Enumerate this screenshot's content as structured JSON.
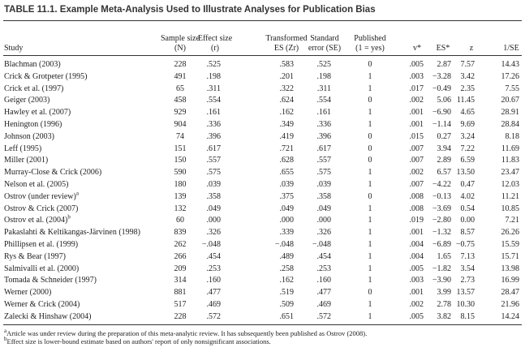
{
  "title": "TABLE 11.1. Example Meta-Analysis Used to Illustrate Analyses for Publication Bias",
  "header": [
    [
      "Study"
    ],
    [
      "Sample size",
      "(N)"
    ],
    [
      "Effect size",
      "(r)"
    ],
    [
      "Transformed",
      "ES (Zr)"
    ],
    [
      "Standard",
      "error (SE)"
    ],
    [
      "Published",
      "(1 = yes)"
    ],
    [
      "v*"
    ],
    [
      "ES*"
    ],
    [
      "z"
    ],
    [
      "1/SE"
    ]
  ],
  "table": {
    "rows": [
      [
        {
          "text": "Blachman (2003)"
        },
        "228",
        ".525",
        ".583",
        ".525",
        "0",
        ".005",
        "2.87",
        "7.57",
        "14.43"
      ],
      [
        {
          "text": "Crick & Grotpeter (1995)"
        },
        "491",
        ".198",
        ".201",
        ".198",
        "1",
        ".003",
        "−3.28",
        "3.42",
        "17.26"
      ],
      [
        {
          "text": "Crick et al. (1997)"
        },
        "65",
        ".311",
        ".322",
        ".311",
        "1",
        ".017",
        "−0.49",
        "2.35",
        "7.55"
      ],
      [
        {
          "text": "Geiger (2003)"
        },
        "458",
        ".554",
        ".624",
        ".554",
        "0",
        ".002",
        "5.06",
        "11.45",
        "20.67"
      ],
      [
        {
          "text": "Hawley et al. (2007)"
        },
        "929",
        ".161",
        ".162",
        ".161",
        "1",
        ".001",
        "−6.90",
        "4.65",
        "28.91"
      ],
      [
        {
          "text": "Henington (1996)"
        },
        "904",
        ".336",
        ".349",
        ".336",
        "1",
        ".001",
        "−1.14",
        "9.69",
        "28.84"
      ],
      [
        {
          "text": "Johnson (2003)"
        },
        "74",
        ".396",
        ".419",
        ".396",
        "0",
        ".015",
        "0.27",
        "3.24",
        "8.18"
      ],
      [
        {
          "text": "Leff (1995)"
        },
        "151",
        ".617",
        ".721",
        ".617",
        "0",
        ".007",
        "3.94",
        "7.22",
        "11.69"
      ],
      [
        {
          "text": "Miller (2001)"
        },
        "150",
        ".557",
        ".628",
        ".557",
        "0",
        ".007",
        "2.89",
        "6.59",
        "11.83"
      ],
      [
        {
          "text": "Murray-Close & Crick (2006)"
        },
        "590",
        ".575",
        ".655",
        ".575",
        "1",
        ".002",
        "6.57",
        "13.50",
        "23.47"
      ],
      [
        {
          "text": "Nelson et al. (2005)"
        },
        "180",
        ".039",
        ".039",
        ".039",
        "1",
        ".007",
        "−4.22",
        "0.47",
        "12.03"
      ],
      [
        {
          "text": "Ostrov (under review)",
          "sup": "a"
        },
        "139",
        ".358",
        ".375",
        ".358",
        "0",
        ".008",
        "−0.13",
        "4.02",
        "11.21"
      ],
      [
        {
          "text": "Ostrov & Crick (2007)"
        },
        "132",
        ".049",
        ".049",
        ".049",
        "1",
        ".008",
        "−3.69",
        "0.54",
        "10.85"
      ],
      [
        {
          "text": "Ostrov et al. (2004)",
          "sup": "b"
        },
        "60",
        ".000",
        ".000",
        ".000",
        "1",
        ".019",
        "−2.80",
        "0.00",
        "7.21"
      ],
      [
        {
          "text": "Pakaslahti & Keltikangas-Järvinen (1998)"
        },
        "839",
        ".326",
        ".339",
        ".326",
        "1",
        ".001",
        "−1.32",
        "8.57",
        "26.26"
      ],
      [
        {
          "text": "Phillipsen et al. (1999)"
        },
        "262",
        "−.048",
        "−.048",
        "−.048",
        "1",
        ".004",
        "−6.89",
        "−0.75",
        "15.59"
      ],
      [
        {
          "text": "Rys & Bear (1997)"
        },
        "266",
        ".454",
        ".489",
        ".454",
        "1",
        ".004",
        "1.65",
        "7.13",
        "15.71"
      ],
      [
        {
          "text": "Salmivalli et al. (2000)"
        },
        "209",
        ".253",
        ".258",
        ".253",
        "1",
        ".005",
        "−1.82",
        "3.54",
        "13.98"
      ],
      [
        {
          "text": "Tomada & Schneider (1997)"
        },
        "314",
        ".160",
        ".162",
        ".160",
        "1",
        ".003",
        "−3.90",
        "2.73",
        "16.99"
      ],
      [
        {
          "text": "Werner (2000)"
        },
        "881",
        ".477",
        ".519",
        ".477",
        "0",
        ".001",
        "3.99",
        "13.57",
        "28.47"
      ],
      [
        {
          "text": "Werner & Crick (2004)"
        },
        "517",
        ".469",
        ".509",
        ".469",
        "1",
        ".002",
        "2.78",
        "10.30",
        "21.96"
      ],
      [
        {
          "text": "Zalecki & Hinshaw (2004)"
        },
        "228",
        ".572",
        ".651",
        ".572",
        "1",
        ".005",
        "3.82",
        "8.15",
        "14.24"
      ]
    ]
  },
  "footnotes": [
    {
      "mark": "a",
      "text": "Article was under review during the preparation of this meta-analytic review. It has subsequently been published as Ostrov (2008)."
    },
    {
      "mark": "b",
      "text": "Effect size is lower-bound estimate based on authors' report of only nonsignificant associations."
    }
  ]
}
